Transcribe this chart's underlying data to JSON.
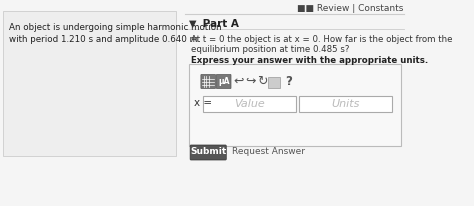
{
  "bg_color": "#f5f5f5",
  "left_panel_bg": "#eeeeee",
  "left_text_line1": "An object is undergoing simple harmonic motion",
  "left_text_line2": "with period 1.210 s and amplitude 0.640 m.",
  "top_right_text": "■■ Review | Constants",
  "part_arrow": "▼",
  "part_label": " Part A",
  "question_line1": "At t = 0 the object is at x = 0. How far is the object from the",
  "question_line2": "equilibrium position at time 0.485 s?",
  "bold_instruction": "Express your answer with the appropriate units.",
  "x_label": "x =",
  "value_placeholder": "Value",
  "units_placeholder": "Units",
  "submit_btn_text": "Submit",
  "request_answer_text": "Request Answer",
  "divider_color": "#cccccc",
  "submit_btn_color": "#555555",
  "submit_text_color": "#ffffff",
  "input_box_color": "#ffffff",
  "input_border_color": "#aaaaaa",
  "toolbar_btn_color": "#777777",
  "panel_border_color": "#cccccc",
  "outer_border_color": "#bbbbbb"
}
